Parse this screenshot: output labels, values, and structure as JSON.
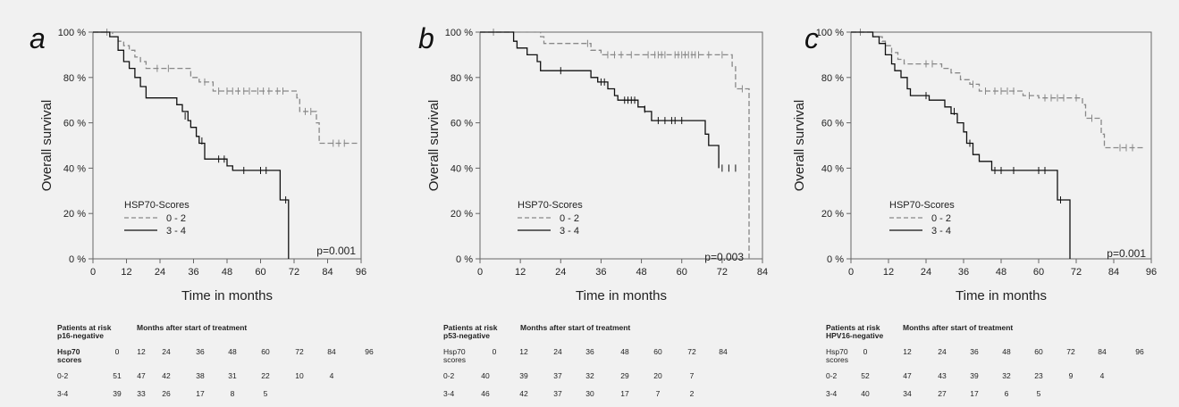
{
  "figure": {
    "panels": [
      {
        "letter": "a",
        "p_value": "p=0.001",
        "risk_table": {
          "title_line1": "Patients at risk",
          "title_line2": "p16-negative",
          "header": "Months after start of treatment",
          "row_label_line1": "Hsp70",
          "row_label_line2": "scores",
          "months": [
            "0",
            "12",
            "24",
            "36",
            "48",
            "60",
            "72",
            "84",
            "96"
          ],
          "rows": [
            {
              "label": "0-2",
              "counts": [
                "51",
                "47",
                "42",
                "38",
                "31",
                "22",
                "10",
                "4",
                ""
              ]
            },
            {
              "label": "3-4",
              "counts": [
                "39",
                "33",
                "26",
                "17",
                "8",
                "5",
                "",
                "",
                ""
              ]
            }
          ]
        }
      },
      {
        "letter": "b",
        "p_value": "p=0.003",
        "risk_table": {
          "title_line1": "Patients at risk",
          "title_line2": "p53-negative",
          "header": "Months after start of treatment",
          "row_label_line1": "Hsp70",
          "row_label_line2": "scores",
          "months": [
            "0",
            "12",
            "24",
            "36",
            "48",
            "60",
            "72",
            "84"
          ],
          "rows": [
            {
              "label": "0-2",
              "counts": [
                "40",
                "39",
                "37",
                "32",
                "29",
                "20",
                "7",
                ""
              ]
            },
            {
              "label": "3-4",
              "counts": [
                "46",
                "42",
                "37",
                "30",
                "17",
                "7",
                "2",
                ""
              ]
            }
          ]
        }
      },
      {
        "letter": "c",
        "p_value": "p=0.001",
        "risk_table": {
          "title_line1": "Patients at risk",
          "title_line2": "HPV16-negative",
          "header": "Months after start of treatment",
          "row_label_line1": "Hsp70",
          "row_label_line2": "scores",
          "months": [
            "0",
            "12",
            "24",
            "36",
            "48",
            "60",
            "72",
            "84",
            "96"
          ],
          "rows": [
            {
              "label": "0-2",
              "counts": [
                "52",
                "47",
                "43",
                "39",
                "32",
                "23",
                "9",
                "4",
                ""
              ]
            },
            {
              "label": "3-4",
              "counts": [
                "40",
                "34",
                "27",
                "17",
                "6",
                "5",
                "",
                "",
                ""
              ]
            }
          ]
        }
      }
    ]
  },
  "chart_data": [
    {
      "type": "line",
      "step": true,
      "xlabel": "Time in months",
      "ylabel": "Overall survival",
      "xlim": [
        0,
        96
      ],
      "ylim": [
        0,
        100
      ],
      "xticks": [
        "0",
        "12",
        "24",
        "36",
        "48",
        "60",
        "72",
        "84",
        "96"
      ],
      "yticks": [
        "0 %",
        "20 %",
        "40 %",
        "60 %",
        "80 %",
        "100 %"
      ],
      "grid": false,
      "legend": {
        "title": "HSP70-Scores",
        "position": "bottom-left"
      },
      "series": [
        {
          "name": "0 - 2",
          "style": "dashed",
          "color": "#888888",
          "steps": [
            [
              0,
              100
            ],
            [
              7,
              98
            ],
            [
              9,
              96
            ],
            [
              11,
              94
            ],
            [
              13,
              92
            ],
            [
              15,
              89
            ],
            [
              17,
              87
            ],
            [
              19,
              84
            ],
            [
              35,
              80
            ],
            [
              38,
              78
            ],
            [
              43,
              74
            ],
            [
              73,
              71
            ],
            [
              74,
              65
            ],
            [
              80,
              60
            ],
            [
              81,
              51
            ],
            [
              95,
              51
            ]
          ],
          "censors": [
            [
              5,
              100
            ],
            [
              23,
              84
            ],
            [
              27,
              84
            ],
            [
              40,
              78
            ],
            [
              45,
              74
            ],
            [
              48,
              74
            ],
            [
              50,
              74
            ],
            [
              52,
              74
            ],
            [
              54,
              74
            ],
            [
              56,
              74
            ],
            [
              59,
              74
            ],
            [
              61,
              74
            ],
            [
              63,
              74
            ],
            [
              66,
              74
            ],
            [
              68,
              74
            ],
            [
              76,
              65
            ],
            [
              78,
              65
            ],
            [
              86,
              51
            ],
            [
              88,
              51
            ],
            [
              90,
              51
            ]
          ]
        },
        {
          "name": "3 - 4",
          "style": "solid",
          "color": "#111111",
          "steps": [
            [
              0,
              100
            ],
            [
              6,
              98
            ],
            [
              9,
              92
            ],
            [
              11,
              87
            ],
            [
              13,
              84
            ],
            [
              15,
              80
            ],
            [
              17,
              76
            ],
            [
              19,
              71
            ],
            [
              30,
              68
            ],
            [
              32,
              65
            ],
            [
              34,
              61
            ],
            [
              35,
              58
            ],
            [
              37,
              54
            ],
            [
              38,
              51
            ],
            [
              40,
              44
            ],
            [
              48,
              41
            ],
            [
              50,
              39
            ],
            [
              67,
              26
            ],
            [
              70,
              0
            ]
          ],
          "censors": [
            [
              33,
              63
            ],
            [
              39,
              52
            ],
            [
              45,
              44
            ],
            [
              47,
              44
            ],
            [
              54,
              39
            ],
            [
              60,
              39
            ],
            [
              62,
              39
            ],
            [
              69,
              26
            ]
          ]
        }
      ]
    },
    {
      "type": "line",
      "step": true,
      "xlabel": "Time in months",
      "ylabel": "Overall survival",
      "xlim": [
        0,
        84
      ],
      "ylim": [
        0,
        100
      ],
      "xticks": [
        "0",
        "12",
        "24",
        "36",
        "48",
        "60",
        "72",
        "84"
      ],
      "yticks": [
        "0 %",
        "20 %",
        "40 %",
        "60 %",
        "80 %",
        "100 %"
      ],
      "grid": false,
      "legend": {
        "title": "HSP70-Scores",
        "position": "bottom-left"
      },
      "series": [
        {
          "name": "0 - 2",
          "style": "dashed",
          "color": "#888888",
          "steps": [
            [
              0,
              100
            ],
            [
              18,
              98
            ],
            [
              19,
              95
            ],
            [
              33,
              92
            ],
            [
              36,
              90
            ],
            [
              75,
              85
            ],
            [
              76,
              75
            ],
            [
              80,
              0
            ]
          ],
          "censors": [
            [
              4,
              100
            ],
            [
              32,
              95
            ],
            [
              38,
              90
            ],
            [
              40,
              90
            ],
            [
              42,
              90
            ],
            [
              45,
              90
            ],
            [
              50,
              90
            ],
            [
              52,
              90
            ],
            [
              53,
              90
            ],
            [
              54,
              90
            ],
            [
              55,
              90
            ],
            [
              58,
              90
            ],
            [
              59,
              90
            ],
            [
              60,
              90
            ],
            [
              61,
              90
            ],
            [
              62,
              90
            ],
            [
              63,
              90
            ],
            [
              64,
              90
            ],
            [
              65,
              90
            ],
            [
              68,
              90
            ],
            [
              72,
              90
            ],
            [
              78,
              75
            ]
          ]
        },
        {
          "name": "3 - 4",
          "style": "solid",
          "color": "#111111",
          "steps": [
            [
              0,
              100
            ],
            [
              10,
              96
            ],
            [
              11,
              93
            ],
            [
              14,
              90
            ],
            [
              17,
              87
            ],
            [
              18,
              83
            ],
            [
              33,
              80
            ],
            [
              35,
              78
            ],
            [
              38,
              75
            ],
            [
              40,
              72
            ],
            [
              41,
              70
            ],
            [
              47,
              67
            ],
            [
              49,
              65
            ],
            [
              51,
              61
            ],
            [
              67,
              55
            ],
            [
              68,
              50
            ],
            [
              71,
              40
            ]
          ],
          "censors": [
            [
              24,
              83
            ],
            [
              36,
              78
            ],
            [
              37,
              78
            ],
            [
              43,
              70
            ],
            [
              44,
              70
            ],
            [
              45,
              70
            ],
            [
              46,
              70
            ],
            [
              49,
              66
            ],
            [
              53,
              61
            ],
            [
              55,
              61
            ],
            [
              57,
              61
            ],
            [
              58,
              61
            ],
            [
              60,
              61
            ],
            [
              72,
              40
            ],
            [
              74,
              40
            ],
            [
              76,
              40
            ]
          ]
        }
      ]
    },
    {
      "type": "line",
      "step": true,
      "xlabel": "Time in months",
      "ylabel": "Overall survival",
      "xlim": [
        0,
        96
      ],
      "ylim": [
        0,
        100
      ],
      "xticks": [
        "0",
        "12",
        "24",
        "36",
        "48",
        "60",
        "72",
        "84",
        "96"
      ],
      "yticks": [
        "0 %",
        "20 %",
        "40 %",
        "60 %",
        "80 %",
        "100 %"
      ],
      "grid": false,
      "legend": {
        "title": "HSP70-Scores",
        "position": "bottom-left"
      },
      "series": [
        {
          "name": "0 - 2",
          "style": "dashed",
          "color": "#888888",
          "steps": [
            [
              0,
              100
            ],
            [
              7,
              98
            ],
            [
              10,
              96
            ],
            [
              11,
              94
            ],
            [
              13,
              91
            ],
            [
              15,
              88
            ],
            [
              17,
              86
            ],
            [
              29,
              84
            ],
            [
              32,
              82
            ],
            [
              35,
              79
            ],
            [
              38,
              77
            ],
            [
              41,
              74
            ],
            [
              55,
              72
            ],
            [
              60,
              71
            ],
            [
              74,
              68
            ],
            [
              75,
              62
            ],
            [
              80,
              55
            ],
            [
              81,
              49
            ],
            [
              94,
              49
            ]
          ],
          "censors": [
            [
              3,
              100
            ],
            [
              24,
              86
            ],
            [
              26,
              86
            ],
            [
              39,
              77
            ],
            [
              43,
              74
            ],
            [
              46,
              74
            ],
            [
              48,
              74
            ],
            [
              50,
              74
            ],
            [
              52,
              74
            ],
            [
              57,
              72
            ],
            [
              62,
              71
            ],
            [
              64,
              71
            ],
            [
              66,
              71
            ],
            [
              68,
              71
            ],
            [
              72,
              71
            ],
            [
              77,
              62
            ],
            [
              86,
              49
            ],
            [
              88,
              49
            ],
            [
              90,
              49
            ]
          ]
        },
        {
          "name": "3 - 4",
          "style": "solid",
          "color": "#111111",
          "steps": [
            [
              0,
              100
            ],
            [
              7,
              98
            ],
            [
              9,
              95
            ],
            [
              11,
              90
            ],
            [
              13,
              86
            ],
            [
              14,
              83
            ],
            [
              16,
              80
            ],
            [
              18,
              75
            ],
            [
              19,
              72
            ],
            [
              25,
              70
            ],
            [
              30,
              67
            ],
            [
              32,
              64
            ],
            [
              34,
              60
            ],
            [
              36,
              56
            ],
            [
              37,
              51
            ],
            [
              39,
              46
            ],
            [
              41,
              43
            ],
            [
              45,
              39
            ],
            [
              66,
              26
            ],
            [
              70,
              0
            ]
          ],
          "censors": [
            [
              24,
              72
            ],
            [
              33,
              65
            ],
            [
              38,
              51
            ],
            [
              46,
              39
            ],
            [
              48,
              39
            ],
            [
              52,
              39
            ],
            [
              60,
              39
            ],
            [
              62,
              39
            ],
            [
              67,
              26
            ]
          ]
        }
      ]
    }
  ]
}
